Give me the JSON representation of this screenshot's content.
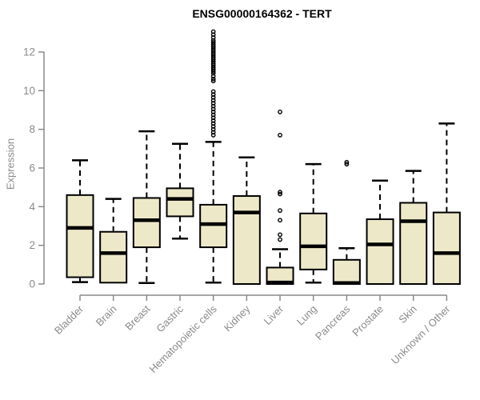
{
  "chart_data": {
    "type": "boxplot",
    "title": "ENSG00000164362 - TERT",
    "ylabel": "Expression",
    "ylim": [
      0,
      13.2
    ],
    "yticks": [
      0,
      2,
      4,
      6,
      8,
      10,
      12
    ],
    "grid": false,
    "categories": [
      "Bladder",
      "Brain",
      "Breast",
      "Gastric",
      "Hematopoietic cells",
      "Kidney",
      "Liver",
      "Lung",
      "Pancreas",
      "Prostate",
      "Skin",
      "Unknown / Other"
    ],
    "boxes": [
      {
        "category": "Bladder",
        "low": 0.1,
        "q1": 0.35,
        "median": 2.9,
        "q3": 4.6,
        "high": 6.4,
        "outliers": []
      },
      {
        "category": "Brain",
        "low": 0.07,
        "q1": 0.07,
        "median": 1.6,
        "q3": 2.7,
        "high": 4.4,
        "outliers": []
      },
      {
        "category": "Breast",
        "low": 0.05,
        "q1": 1.9,
        "median": 3.3,
        "q3": 4.45,
        "high": 7.9,
        "outliers": []
      },
      {
        "category": "Gastric",
        "low": 2.35,
        "q1": 3.5,
        "median": 4.4,
        "q3": 4.95,
        "high": 7.25,
        "outliers": []
      },
      {
        "category": "Hematopoietic cells",
        "low": 0.07,
        "q1": 1.9,
        "median": 3.1,
        "q3": 4.1,
        "high": 7.35,
        "outliers": [
          13.05,
          12.9,
          12.75,
          12.6,
          12.5,
          12.4,
          12.3,
          12.2,
          12.1,
          12.0,
          11.9,
          11.8,
          11.7,
          11.6,
          11.5,
          11.4,
          11.3,
          11.2,
          11.1,
          11.0,
          10.9,
          10.75,
          10.6,
          10.5,
          9.95,
          9.8,
          9.65,
          9.5,
          9.35,
          9.2,
          9.05,
          8.9,
          8.75,
          8.6,
          8.45,
          8.3,
          8.15,
          8.0,
          7.85,
          7.7
        ]
      },
      {
        "category": "Kidney",
        "low": 0.0,
        "q1": 0.0,
        "median": 3.7,
        "q3": 4.55,
        "high": 6.55,
        "outliers": []
      },
      {
        "category": "Liver",
        "low": 0.0,
        "q1": 0.0,
        "median": 0.08,
        "q3": 0.85,
        "high": 1.8,
        "outliers": [
          2.3,
          2.55,
          3.3,
          3.8,
          4.65,
          4.75,
          7.7,
          8.9
        ]
      },
      {
        "category": "Lung",
        "low": 0.07,
        "q1": 0.75,
        "median": 1.95,
        "q3": 3.65,
        "high": 6.2,
        "outliers": []
      },
      {
        "category": "Pancreas",
        "low": 0.0,
        "q1": 0.0,
        "median": 0.05,
        "q3": 1.25,
        "high": 1.85,
        "outliers": [
          6.2,
          6.3
        ]
      },
      {
        "category": "Prostate",
        "low": 0.0,
        "q1": 0.0,
        "median": 2.05,
        "q3": 3.35,
        "high": 5.35,
        "outliers": []
      },
      {
        "category": "Skin",
        "low": 0.0,
        "q1": 0.0,
        "median": 3.25,
        "q3": 4.2,
        "high": 5.85,
        "outliers": []
      },
      {
        "category": "Unknown / Other",
        "low": 0.0,
        "q1": 0.0,
        "median": 1.6,
        "q3": 3.7,
        "high": 8.3,
        "outliers": []
      }
    ],
    "colors": {
      "box_fill": "#ede8c8",
      "box_border": "#000000",
      "median": "#000000",
      "whisker": "#000000",
      "axis": "#8a8a8a",
      "tick_label": "#8a8a8a",
      "title": "#000000",
      "background": "#ffffff"
    }
  }
}
